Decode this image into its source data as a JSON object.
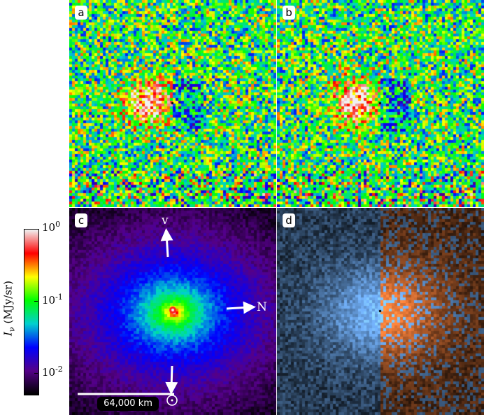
{
  "panels": [
    {
      "label": "a",
      "kind": "ratio-noisy"
    },
    {
      "label": "b",
      "kind": "ratio-noisy-2"
    },
    {
      "label": "c",
      "kind": "intensity"
    },
    {
      "label": "d",
      "kind": "diverging"
    }
  ],
  "panel_c": {
    "v_label": "v",
    "n_label": "N",
    "sun_label": "☉",
    "scale_label": "64,000 km"
  },
  "colorbar": {
    "title": "I_ν (MJy/sr)",
    "title_main": "I",
    "title_sub": "ν",
    "title_units": "(MJy/sr)",
    "scale": "log",
    "ticks": [
      {
        "base": "10",
        "exp": "0"
      },
      {
        "base": "10",
        "exp": "-1"
      },
      {
        "base": "10",
        "exp": "-2"
      }
    ],
    "colormap": [
      "#f0f0f0",
      "#ff0000",
      "#ffff00",
      "#00ff00",
      "#00d0d0",
      "#0000ff",
      "#550088",
      "#000000"
    ]
  }
}
